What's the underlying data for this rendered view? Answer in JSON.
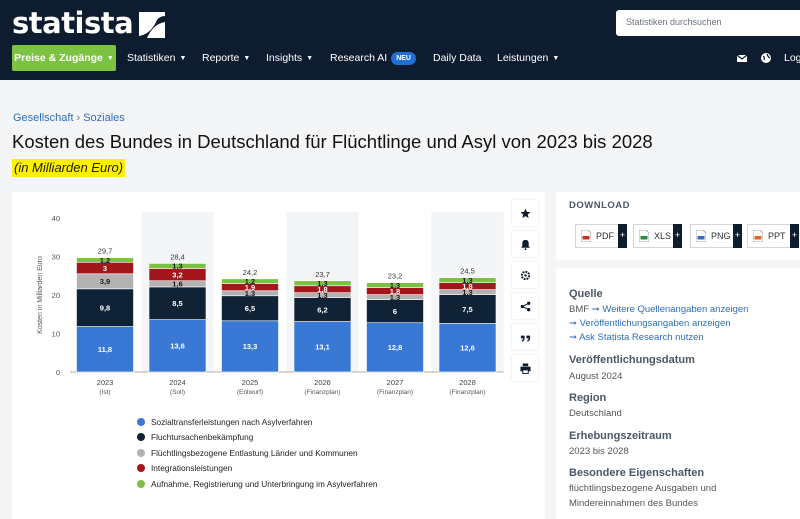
{
  "header": {
    "logo_text": "statista",
    "search_placeholder": "Statistiken durchsuchen",
    "nav": {
      "preise": "Preise & Zugänge",
      "statistiken": "Statistiken",
      "reporte": "Reporte",
      "insights": "Insights",
      "research_ai": "Research AI",
      "neu_badge": "NEU",
      "daily_data": "Daily Data",
      "leistungen": "Leistungen",
      "login": "Log"
    }
  },
  "breadcrumb": {
    "item1": "Gesellschaft",
    "item2": "Soziales"
  },
  "page_title": "Kosten des Bundes in Deutschland für Flüchtlinge und Asyl von 2023 bis 2028",
  "subtitle": "(in Milliarden Euro)",
  "chart_data": {
    "type": "bar",
    "stacked": true,
    "ylabel": "Kosten in Milliarden Euro",
    "ylim": [
      0,
      40
    ],
    "yticks": [
      0,
      10,
      20,
      30,
      40
    ],
    "categories": [
      "2023",
      "2024",
      "2025",
      "2026",
      "2027",
      "2028"
    ],
    "category_sublabels": [
      "(Ist)",
      "(Soll)",
      "(Entwurf)",
      "(Finanzplan)",
      "(Finanzplan)",
      "(Finanzplan)"
    ],
    "totals": [
      "29,7",
      "28,4",
      "24,2",
      "23,7",
      "23,2",
      "24,5"
    ],
    "series": [
      {
        "name": "Sozialtransferleistungen nach Asylverfahren",
        "color": "#3a78d6",
        "values": [
          11.8,
          13.6,
          13.3,
          13.1,
          12.8,
          12.6
        ],
        "labels": [
          "11,8",
          "13,6",
          "13,3",
          "13,1",
          "12,8",
          "12,6"
        ]
      },
      {
        "name": "Fluchtursachenbekämpfung",
        "color": "#102236",
        "values": [
          9.8,
          8.5,
          6.5,
          6.2,
          6.0,
          7.5
        ],
        "labels": [
          "9,8",
          "8,5",
          "6,5",
          "6,2",
          "6",
          "7,5"
        ]
      },
      {
        "name": "Flüchtlingsbezogene Entlastung Länder und Kommunen",
        "color": "#b2b2b2",
        "values": [
          3.9,
          1.6,
          1.3,
          1.3,
          1.3,
          1.3
        ],
        "labels": [
          "3,9",
          "1,6",
          "1,3",
          "1,3",
          "1,3",
          "1,3"
        ]
      },
      {
        "name": "Integrationsleistungen",
        "color": "#a3161b",
        "values": [
          3.0,
          3.2,
          1.9,
          1.8,
          1.8,
          1.8
        ],
        "labels": [
          "3",
          "3,2",
          "1,9",
          "1,8",
          "1,8",
          "1,8"
        ]
      },
      {
        "name": "Aufnahme, Registrierung und Unterbringung im Asylverfahren",
        "color": "#7cc242",
        "values": [
          1.2,
          1.3,
          1.2,
          1.3,
          1.3,
          1.3
        ],
        "labels": [
          "1,2",
          "1,3",
          "1,2",
          "1,3",
          "1,3",
          "1,3"
        ]
      }
    ],
    "legend_position": "bottom-left",
    "grid": false
  },
  "download": {
    "title": "DOWNLOAD",
    "pdf": "PDF",
    "xls": "XLS",
    "png": "PNG",
    "ppt": "PPT",
    "plus": "+"
  },
  "info": {
    "quelle_h": "Quelle",
    "quelle_src": "BMF",
    "quelle_link1": "Weitere Quellenangaben anzeigen",
    "quelle_link2": "Veröffentlichungsangaben anzeigen",
    "quelle_link3": "Ask Statista Research nutzen",
    "veroeff_h": "Veröffentlichungsdatum",
    "veroeff_t": "August 2024",
    "region_h": "Region",
    "region_t": "Deutschland",
    "erhebung_h": "Erhebungszeitraum",
    "erhebung_t": "2023 bis 2028",
    "besondere_h": "Besondere Eigenschaften",
    "besondere_t1": "flüchtlingsbezogene Ausgaben und",
    "besondere_t2": "Mindereinnahmen des Bundes"
  }
}
